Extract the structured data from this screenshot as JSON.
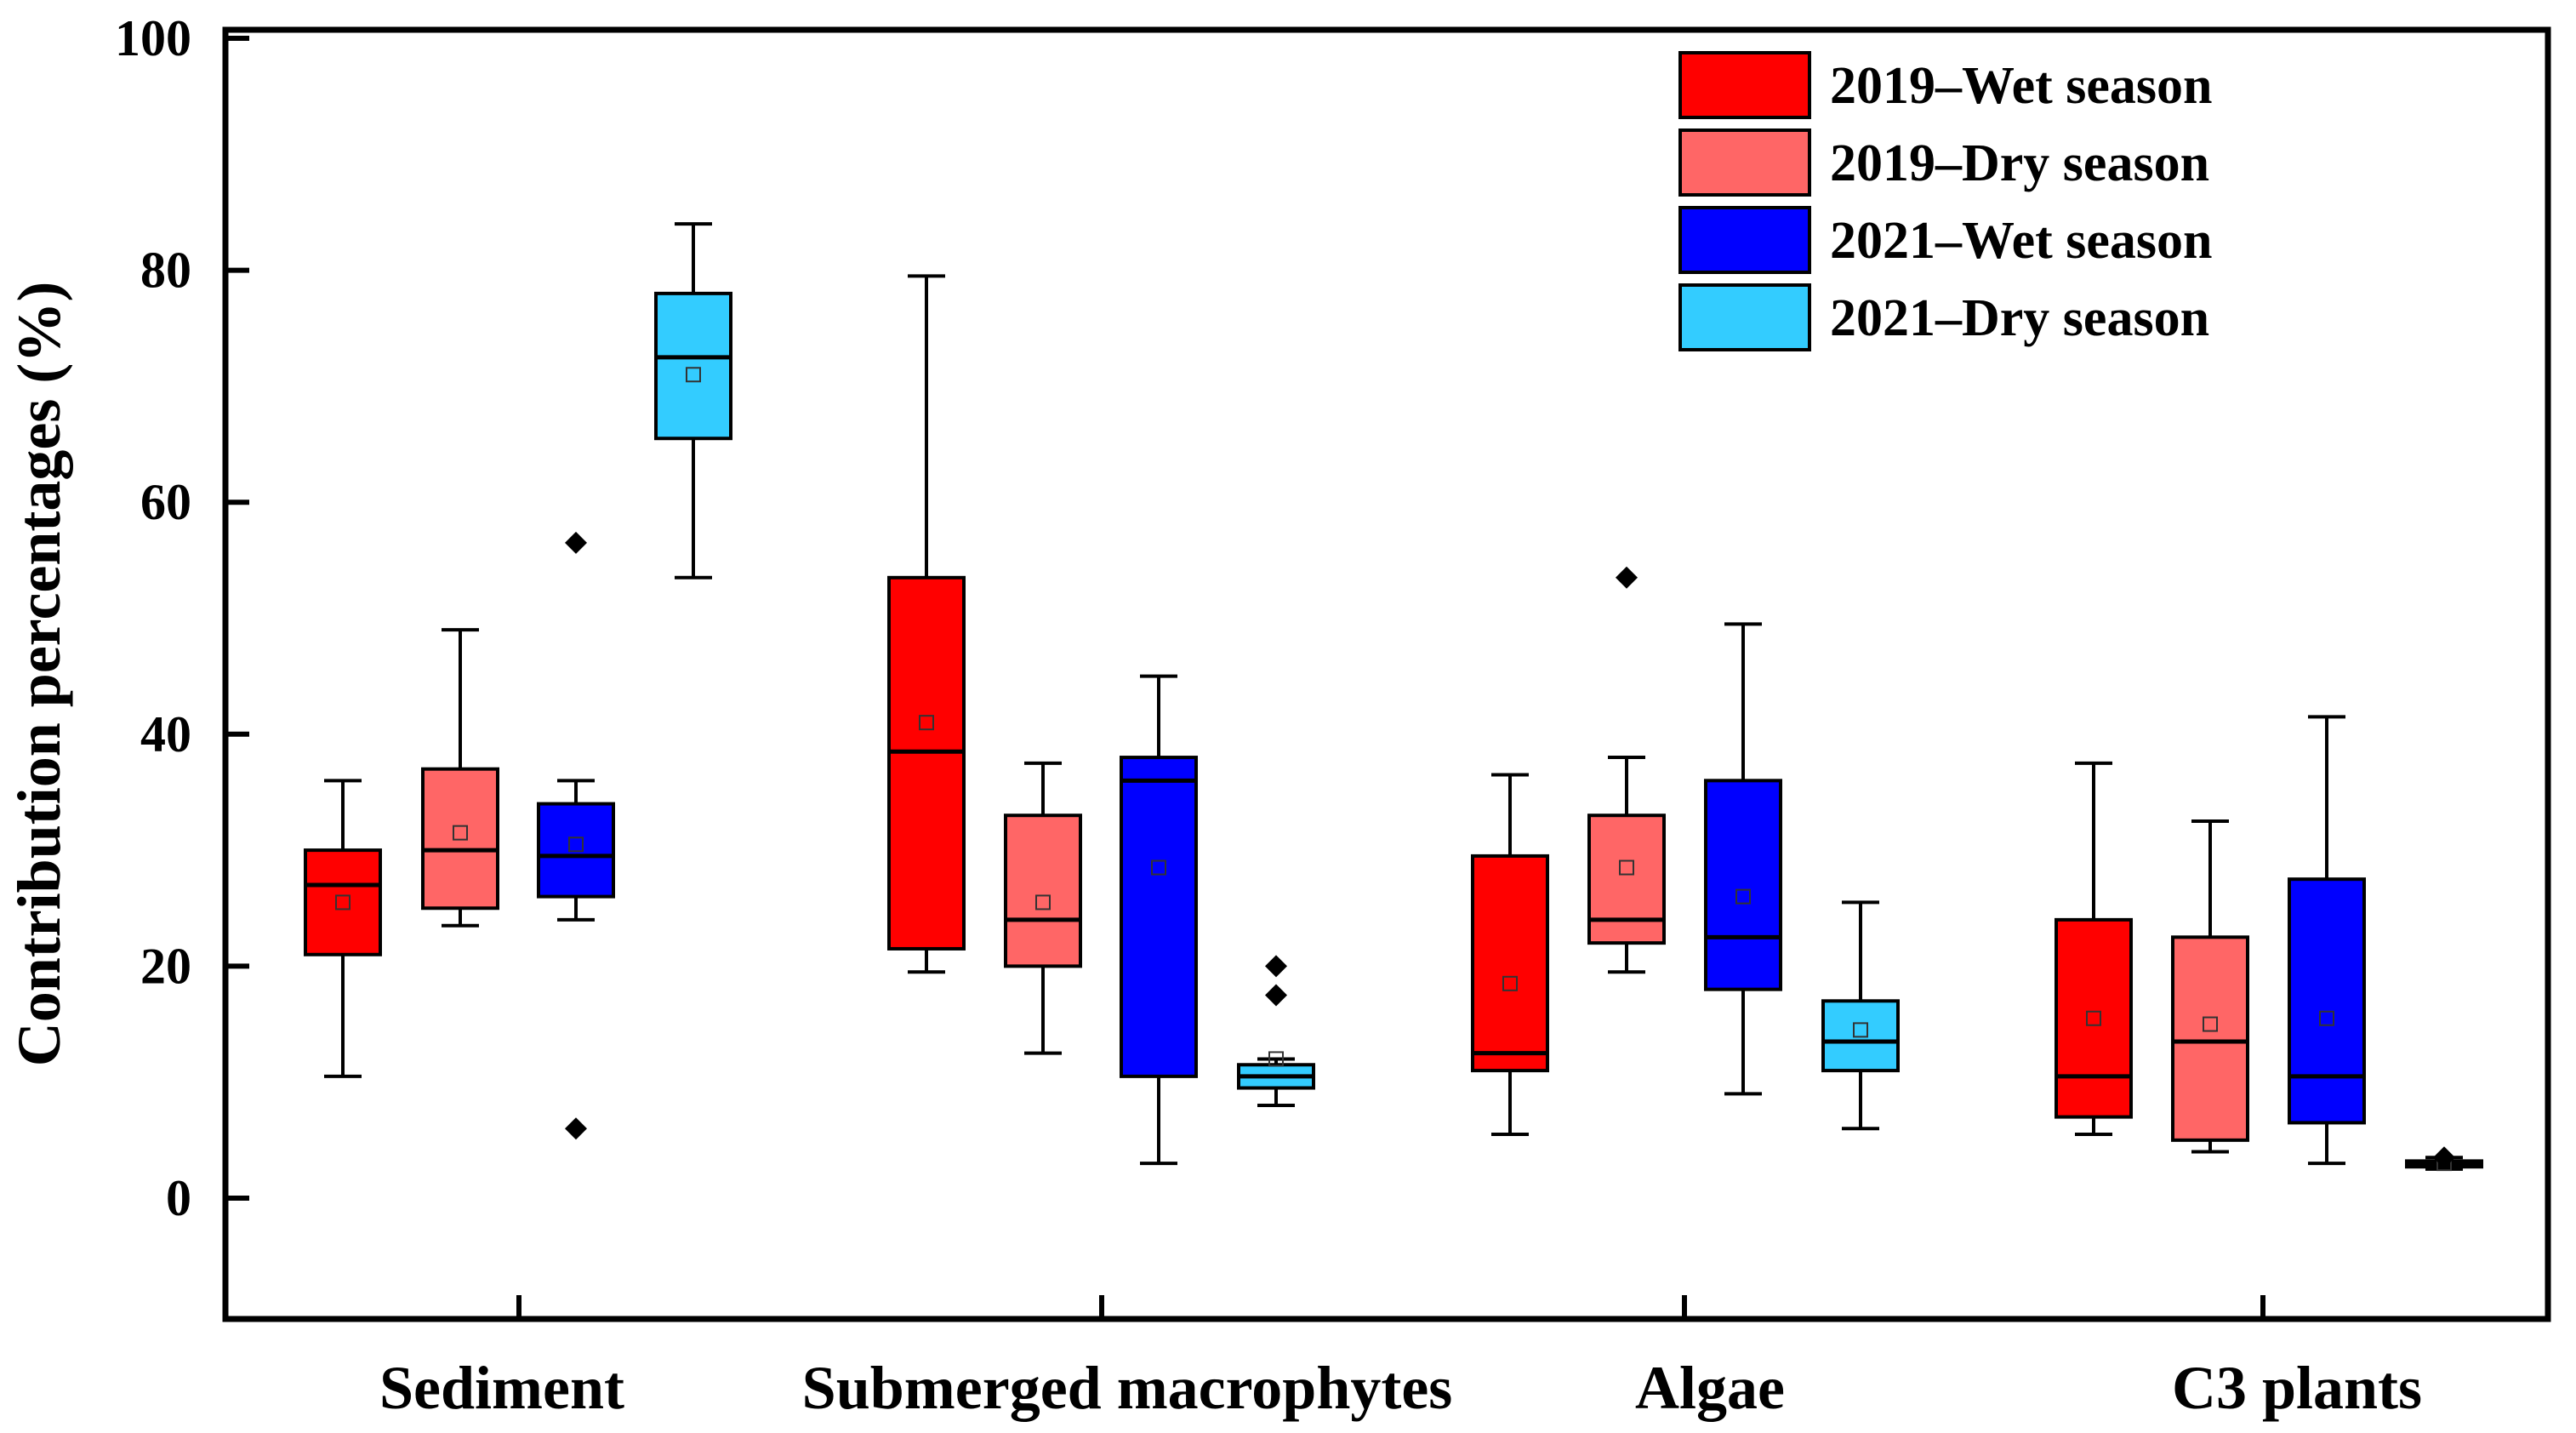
{
  "chart_data": {
    "type": "boxplot",
    "title": "",
    "xlabel": "",
    "ylabel": "Contribution percentages (%)",
    "ylim": [
      -10,
      100
    ],
    "yticks": [
      "0",
      "20",
      "40",
      "60",
      "80",
      "100"
    ],
    "grid": false,
    "legend_position": "top-right",
    "categories": [
      "Sediment",
      "Submerged macrophytes",
      "Algae",
      "C3 plants"
    ],
    "series": [
      {
        "name": "2019–Wet season",
        "color": "#ff0000",
        "boxes": [
          {
            "min": 10.5,
            "q1": 21,
            "median": 27,
            "q3": 30,
            "max": 36,
            "mean": 25.5,
            "outliers": []
          },
          {
            "min": 19.5,
            "q1": 21.5,
            "median": 38.5,
            "q3": 53.5,
            "max": 79.5,
            "mean": 41,
            "outliers": []
          },
          {
            "min": 5.5,
            "q1": 11,
            "median": 12.5,
            "q3": 29.5,
            "max": 36.5,
            "mean": 18.5,
            "outliers": []
          },
          {
            "min": 5.5,
            "q1": 7,
            "median": 10.5,
            "q3": 24,
            "max": 37.5,
            "mean": 15.5,
            "outliers": []
          }
        ]
      },
      {
        "name": "2019–Dry season",
        "color": "#ff6666",
        "boxes": [
          {
            "min": 23.5,
            "q1": 25,
            "median": 30,
            "q3": 37,
            "max": 49,
            "mean": 31.5,
            "outliers": []
          },
          {
            "min": 12.5,
            "q1": 20,
            "median": 24,
            "q3": 33,
            "max": 37.5,
            "mean": 25.5,
            "outliers": []
          },
          {
            "min": 19.5,
            "q1": 22,
            "median": 24,
            "q3": 33,
            "max": 38,
            "mean": 28.5,
            "outliers": [
              53.5
            ]
          },
          {
            "min": 4,
            "q1": 5,
            "median": 13.5,
            "q3": 22.5,
            "max": 32.5,
            "mean": 15,
            "outliers": []
          }
        ]
      },
      {
        "name": "2021–Wet season",
        "color": "#0000ff",
        "boxes": [
          {
            "min": 24,
            "q1": 26,
            "median": 29.5,
            "q3": 34,
            "max": 36,
            "mean": 30.5,
            "outliers": [
              56.5,
              6
            ]
          },
          {
            "min": 3,
            "q1": 10.5,
            "median": 36,
            "q3": 38,
            "max": 45,
            "mean": 28.5,
            "outliers": []
          },
          {
            "min": 9,
            "q1": 18,
            "median": 22.5,
            "q3": 36,
            "max": 49.5,
            "mean": 26,
            "outliers": []
          },
          {
            "min": 3,
            "q1": 6.5,
            "median": 10.5,
            "q3": 27.5,
            "max": 41.5,
            "mean": 15.5,
            "outliers": []
          }
        ]
      },
      {
        "name": "2021–Dry season",
        "color": "#33ccff",
        "boxes": [
          {
            "min": 53.5,
            "q1": 65.5,
            "median": 72.5,
            "q3": 78,
            "max": 84,
            "mean": 71,
            "outliers": []
          },
          {
            "min": 8,
            "q1": 9.5,
            "median": 10.5,
            "q3": 11.5,
            "max": 12,
            "mean": 12,
            "outliers": [
              20,
              17.5
            ]
          },
          {
            "min": 6,
            "q1": 11,
            "median": 13.5,
            "q3": 17,
            "max": 25.5,
            "mean": 14.5,
            "outliers": []
          },
          {
            "min": 2.5,
            "q1": 2.7,
            "median": 3,
            "q3": 3.2,
            "max": 3.5,
            "mean": 3,
            "outliers": [
              3.5
            ]
          }
        ]
      }
    ]
  }
}
